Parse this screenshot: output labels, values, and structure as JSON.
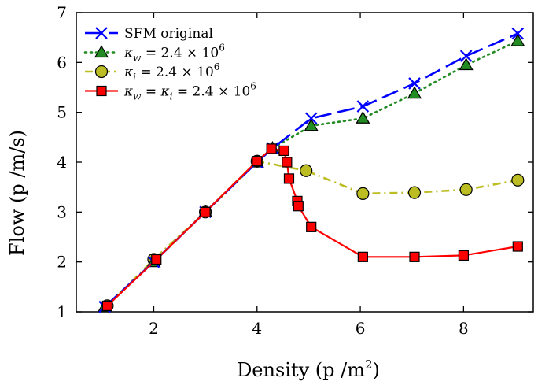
{
  "chart_data": {
    "type": "line",
    "xlabel": "Density (p /m",
    "xlabel_sup": "2",
    "xlabel_close": ")",
    "ylabel": "Flow (p /m/s)",
    "xlim": [
      0.5,
      9.35
    ],
    "ylim": [
      1,
      7
    ],
    "xticks": [
      2,
      4,
      6,
      8
    ],
    "yticks": [
      1,
      2,
      3,
      4,
      5,
      6,
      7
    ],
    "grid": false,
    "legend_position": "top-left",
    "series": [
      {
        "name": "SFM original",
        "color": "#0000ff",
        "line_style": "long-dash",
        "marker": "x",
        "x": [
          1.05,
          2.0,
          3.0,
          4.0,
          4.3,
          5.05,
          6.05,
          7.05,
          8.05,
          9.05
        ],
        "y": [
          1.1,
          2.0,
          3.0,
          4.0,
          4.28,
          4.88,
          5.12,
          5.58,
          6.13,
          6.58
        ]
      },
      {
        "name": "κw = 2.4 × 10^6",
        "label_lhs": "κ",
        "label_sub": "w",
        "label_rhs": " = 2.4 × 10",
        "label_exp": "6",
        "color": "#228b22",
        "line_style": "dotted",
        "marker": "triangle",
        "x": [
          1.05,
          2.0,
          3.0,
          4.0,
          4.3,
          5.05,
          6.05,
          7.05,
          8.05,
          9.05
        ],
        "y": [
          1.1,
          2.0,
          3.0,
          4.0,
          4.28,
          4.73,
          4.88,
          5.38,
          5.95,
          6.43
        ]
      },
      {
        "name": "κi = 2.4 × 10^6",
        "label_lhs": "κ",
        "label_sub": "i",
        "label_rhs": " = 2.4 × 10",
        "label_exp": "6",
        "color": "#bcbd22",
        "line_style": "dash-dot",
        "marker": "circle",
        "x": [
          1.1,
          2.0,
          3.0,
          4.0,
          4.95,
          6.05,
          7.05,
          8.05,
          9.05
        ],
        "y": [
          1.12,
          2.05,
          3.0,
          4.02,
          3.83,
          3.37,
          3.39,
          3.45,
          3.64
        ]
      },
      {
        "name": "κw = κi = 2.4 × 10^6",
        "label_lhs": "κ",
        "label_sub": "w",
        "label_mid": " = κ",
        "label_sub2": "i",
        "label_rhs": " = 2.4 × 10",
        "label_exp": "6",
        "color": "#ff0000",
        "line_style": "solid",
        "marker": "square",
        "x": [
          1.1,
          2.05,
          3.0,
          4.0,
          4.28,
          4.52,
          4.58,
          4.62,
          4.78,
          4.8,
          5.05,
          6.05,
          7.05,
          8.0,
          9.05
        ],
        "y": [
          1.12,
          2.05,
          3.0,
          4.02,
          4.27,
          4.23,
          4.0,
          3.67,
          3.22,
          3.12,
          2.7,
          2.1,
          2.1,
          2.13,
          2.31
        ]
      }
    ]
  }
}
